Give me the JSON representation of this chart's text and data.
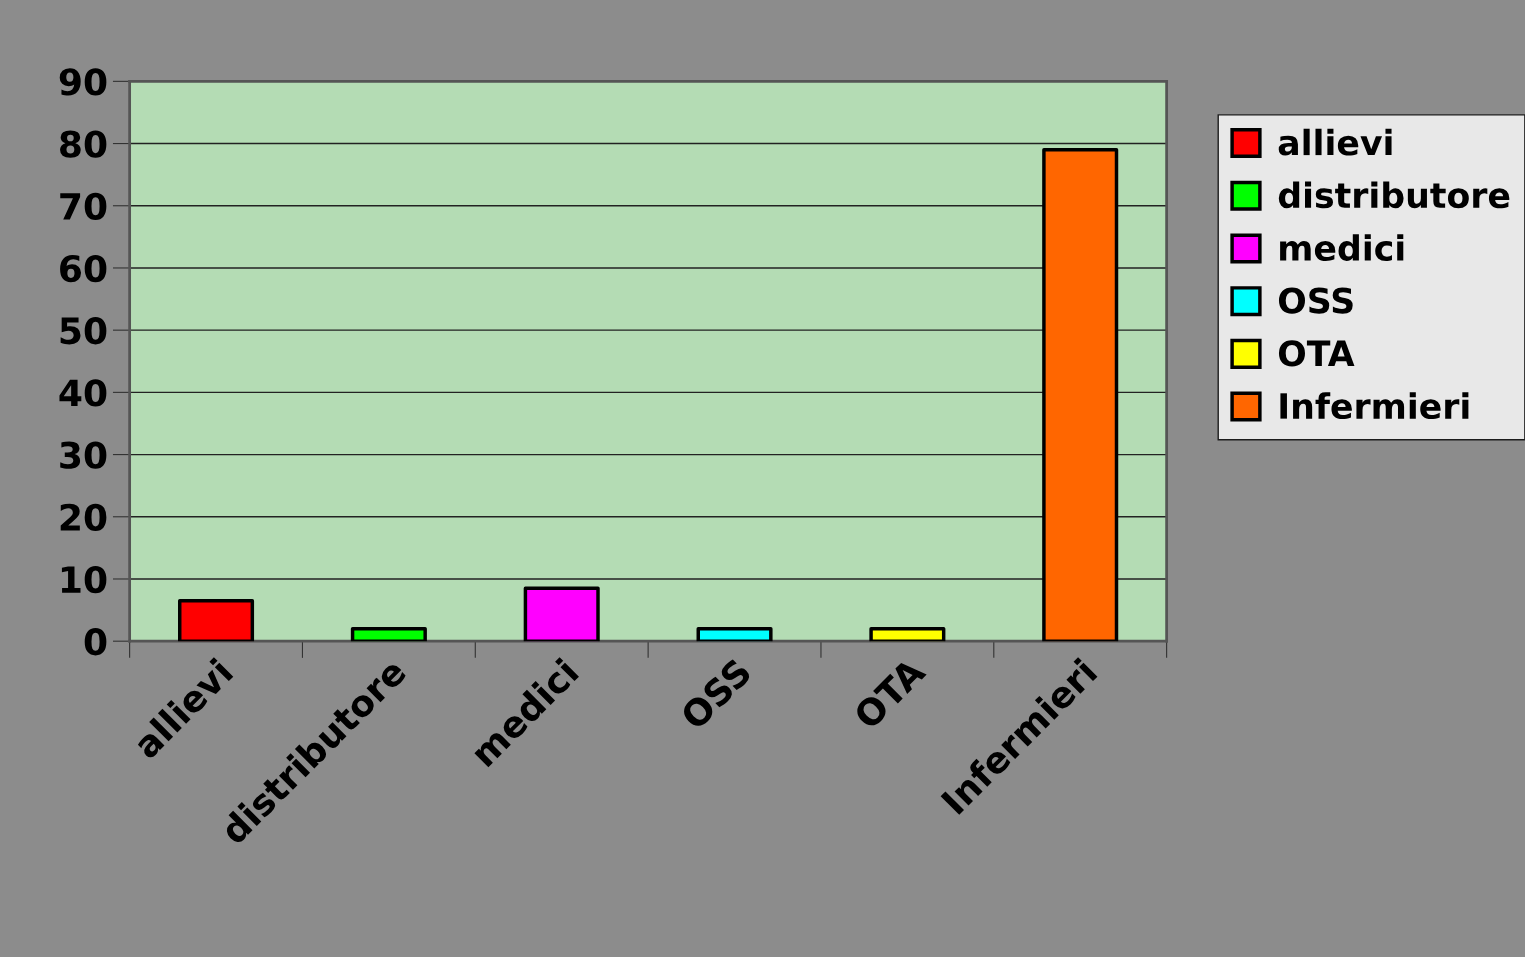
{
  "chart_data": {
    "type": "bar",
    "categories": [
      "allievi",
      "distributore",
      "medici",
      "OSS",
      "OTA",
      "Infermieri"
    ],
    "series": [
      {
        "name": "allievi",
        "color": "#ff0000",
        "values": [
          6.5,
          null,
          null,
          null,
          null,
          null
        ]
      },
      {
        "name": "distributore",
        "color": "#00ff00",
        "values": [
          null,
          2,
          null,
          null,
          null,
          null
        ]
      },
      {
        "name": "medici",
        "color": "#ff00ff",
        "values": [
          null,
          null,
          8.5,
          null,
          null,
          null
        ]
      },
      {
        "name": "OSS",
        "color": "#00ffff",
        "values": [
          null,
          null,
          null,
          2,
          null,
          null
        ]
      },
      {
        "name": "OTA",
        "color": "#ffff00",
        "values": [
          null,
          null,
          null,
          null,
          2,
          null
        ]
      },
      {
        "name": "Infermieri",
        "color": "#ff6600",
        "values": [
          null,
          null,
          null,
          null,
          null,
          79
        ]
      }
    ],
    "ylim": [
      0,
      90
    ],
    "yticks": [
      0,
      10,
      20,
      30,
      40,
      50,
      60,
      70,
      80,
      90
    ],
    "grid": "y",
    "legend": "right"
  }
}
